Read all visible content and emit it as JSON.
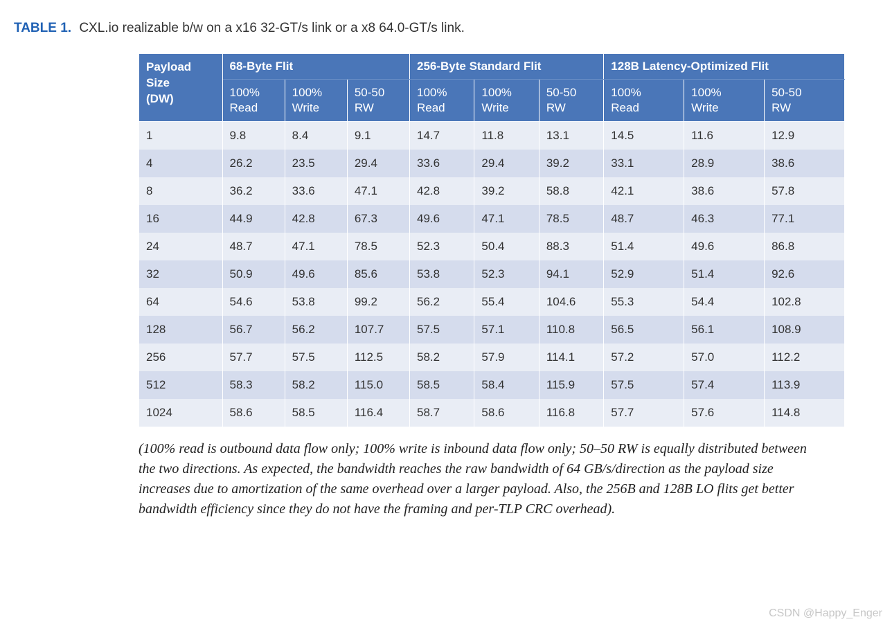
{
  "title": {
    "label": "TABLE 1.",
    "text": "CXL.io realizable b/w on a x16 32-GT/s link or a x8 64.0-GT/s link."
  },
  "table": {
    "header_bg": "#4a76b8",
    "header_fg": "#ffffff",
    "row_even_bg": "#e9edf5",
    "row_odd_bg": "#d5dced",
    "payload_header_l1": "Payload",
    "payload_header_l2": "Size",
    "payload_header_l3": "(DW)",
    "groups": [
      "68-Byte Flit",
      "256-Byte Standard Flit",
      "128B Latency-Optimized Flit"
    ],
    "subheaders": [
      {
        "l1": "100%",
        "l2": "Read"
      },
      {
        "l1": "100%",
        "l2": "Write"
      },
      {
        "l1": "50-50",
        "l2": "RW"
      }
    ],
    "rows": [
      {
        "payload": "1",
        "v": [
          "9.8",
          "8.4",
          "9.1",
          "14.7",
          "11.8",
          "13.1",
          "14.5",
          "11.6",
          "12.9"
        ]
      },
      {
        "payload": "4",
        "v": [
          "26.2",
          "23.5",
          "29.4",
          "33.6",
          "29.4",
          "39.2",
          "33.1",
          "28.9",
          "38.6"
        ]
      },
      {
        "payload": "8",
        "v": [
          "36.2",
          "33.6",
          "47.1",
          "42.8",
          "39.2",
          "58.8",
          "42.1",
          "38.6",
          "57.8"
        ]
      },
      {
        "payload": "16",
        "v": [
          "44.9",
          "42.8",
          "67.3",
          "49.6",
          "47.1",
          "78.5",
          "48.7",
          "46.3",
          "77.1"
        ]
      },
      {
        "payload": "24",
        "v": [
          "48.7",
          "47.1",
          "78.5",
          "52.3",
          "50.4",
          "88.3",
          "51.4",
          "49.6",
          "86.8"
        ]
      },
      {
        "payload": "32",
        "v": [
          "50.9",
          "49.6",
          "85.6",
          "53.8",
          "52.3",
          "94.1",
          "52.9",
          "51.4",
          "92.6"
        ]
      },
      {
        "payload": "64",
        "v": [
          "54.6",
          "53.8",
          "99.2",
          "56.2",
          "55.4",
          "104.6",
          "55.3",
          "54.4",
          "102.8"
        ]
      },
      {
        "payload": "128",
        "v": [
          "56.7",
          "56.2",
          "107.7",
          "57.5",
          "57.1",
          "110.8",
          "56.5",
          "56.1",
          "108.9"
        ]
      },
      {
        "payload": "256",
        "v": [
          "57.7",
          "57.5",
          "112.5",
          "58.2",
          "57.9",
          "114.1",
          "57.2",
          "57.0",
          "112.2"
        ]
      },
      {
        "payload": "512",
        "v": [
          "58.3",
          "58.2",
          "115.0",
          "58.5",
          "58.4",
          "115.9",
          "57.5",
          "57.4",
          "113.9"
        ]
      },
      {
        "payload": "1024",
        "v": [
          "58.6",
          "58.5",
          "116.4",
          "58.7",
          "58.6",
          "116.8",
          "57.7",
          "57.6",
          "114.8"
        ]
      }
    ]
  },
  "footnote": "(100% read is outbound data flow only; 100% write is inbound data flow only; 50–50 RW is equally distributed between the two directions. As expected, the bandwidth reaches the raw bandwidth of 64 GB/s/direction as the payload size increases due to amortization of the same overhead over a larger payload. Also, the 256B and 128B LO flits get better bandwidth efficiency since they do not have the framing and per-TLP CRC overhead).",
  "watermark": "CSDN @Happy_Enger"
}
